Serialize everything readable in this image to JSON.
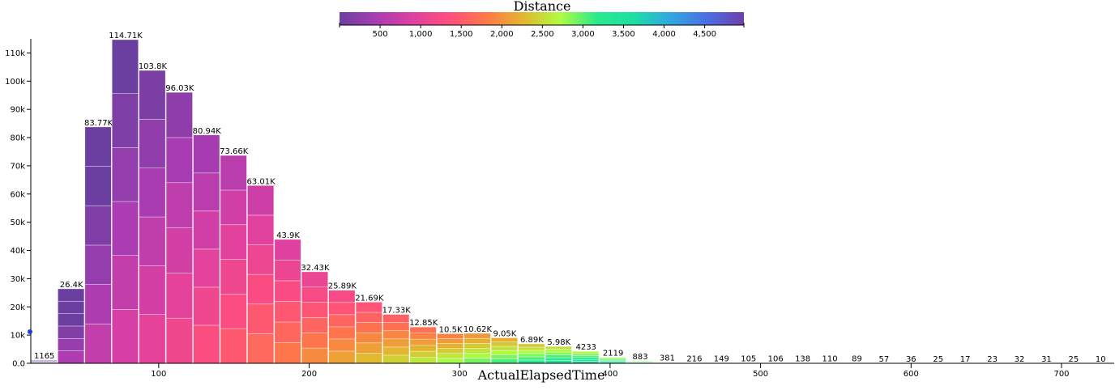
{
  "chart_data": {
    "type": "bar",
    "subtype": "stacked-histogram",
    "xlabel": "ActualElapsedTime",
    "ylabel": "",
    "xlim": [
      15,
      735
    ],
    "ylim": [
      0,
      115000
    ],
    "x_ticks": [
      "100",
      "200",
      "300",
      "400",
      "500",
      "600",
      "700"
    ],
    "y_ticks": [
      "0.0",
      "10k",
      "20k",
      "30k",
      "40k",
      "50k",
      "60k",
      "70k",
      "80k",
      "90k",
      "100k",
      "110k"
    ],
    "grid": false,
    "bin_width": 18,
    "bins": [
      {
        "x0": 15,
        "value": 1165,
        "label": "1165"
      },
      {
        "x0": 33,
        "value": 26400,
        "label": "26.4K"
      },
      {
        "x0": 51,
        "value": 83770,
        "label": "83.77K"
      },
      {
        "x0": 69,
        "value": 114710,
        "label": "114.71K"
      },
      {
        "x0": 87,
        "value": 103800,
        "label": "103.8K"
      },
      {
        "x0": 105,
        "value": 96030,
        "label": "96.03K"
      },
      {
        "x0": 123,
        "value": 80940,
        "label": "80.94K"
      },
      {
        "x0": 141,
        "value": 73660,
        "label": "73.66K"
      },
      {
        "x0": 159,
        "value": 63010,
        "label": "63.01K"
      },
      {
        "x0": 177,
        "value": 43900,
        "label": "43.9K"
      },
      {
        "x0": 195,
        "value": 32430,
        "label": "32.43K"
      },
      {
        "x0": 213,
        "value": 25890,
        "label": "25.89K"
      },
      {
        "x0": 231,
        "value": 21690,
        "label": "21.69K"
      },
      {
        "x0": 249,
        "value": 17330,
        "label": "17.33K"
      },
      {
        "x0": 267,
        "value": 12850,
        "label": "12.85K"
      },
      {
        "x0": 285,
        "value": 10500,
        "label": "10.5K"
      },
      {
        "x0": 303,
        "value": 10620,
        "label": "10.62K"
      },
      {
        "x0": 321,
        "value": 9050,
        "label": "9.05K"
      },
      {
        "x0": 339,
        "value": 6890,
        "label": "6.89K"
      },
      {
        "x0": 357,
        "value": 5980,
        "label": "5.98K"
      },
      {
        "x0": 375,
        "value": 4233,
        "label": "4233"
      },
      {
        "x0": 393,
        "value": 2119,
        "label": "2119"
      },
      {
        "x0": 411,
        "value": 883,
        "label": "883"
      },
      {
        "x0": 429,
        "value": 381,
        "label": "381"
      },
      {
        "x0": 447,
        "value": 216,
        "label": "216"
      },
      {
        "x0": 465,
        "value": 149,
        "label": "149"
      },
      {
        "x0": 483,
        "value": 105,
        "label": "105"
      },
      {
        "x0": 501,
        "value": 106,
        "label": "106"
      },
      {
        "x0": 519,
        "value": 138,
        "label": "138"
      },
      {
        "x0": 537,
        "value": 110,
        "label": "110"
      },
      {
        "x0": 555,
        "value": 89,
        "label": "89"
      },
      {
        "x0": 573,
        "value": 57,
        "label": "57"
      },
      {
        "x0": 591,
        "value": 36,
        "label": "36"
      },
      {
        "x0": 609,
        "value": 25,
        "label": "25"
      },
      {
        "x0": 627,
        "value": 17,
        "label": "17"
      },
      {
        "x0": 645,
        "value": 23,
        "label": "23"
      },
      {
        "x0": 663,
        "value": 32,
        "label": "32"
      },
      {
        "x0": 681,
        "value": 31,
        "label": "31"
      },
      {
        "x0": 699,
        "value": 25,
        "label": "25"
      },
      {
        "x0": 717,
        "value": 10,
        "label": "10"
      }
    ],
    "legend": {
      "title": "Distance",
      "placement": "top-center",
      "domain": [
        0,
        4983
      ],
      "ticks": [
        "500",
        "1,000",
        "1,500",
        "2,000",
        "2,500",
        "3,000",
        "3,500",
        "4,000",
        "4,500"
      ],
      "colors": [
        "#6b3fa0",
        "#a83cb3",
        "#df40a1",
        "#ff4f7c",
        "#ff7847",
        "#e2b72f",
        "#affc41",
        "#28ea8d",
        "#1ddfa3",
        "#30a8e1",
        "#4a6fe3",
        "#6e40aa"
      ]
    }
  }
}
